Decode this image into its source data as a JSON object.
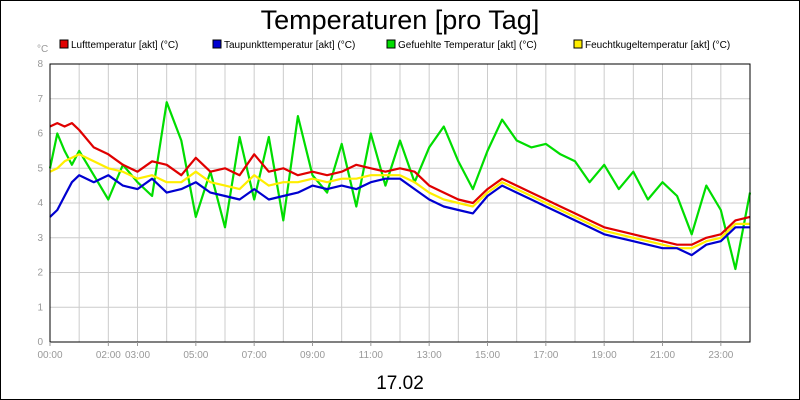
{
  "chart_data": {
    "type": "line",
    "title": "Temperaturen [pro Tag]",
    "subtitle": "17.02",
    "ylabel": "°C",
    "ylim": [
      0,
      8
    ],
    "y_ticks": [
      "0",
      "1",
      "2",
      "3",
      "4",
      "5",
      "6",
      "7",
      "8"
    ],
    "x_range_hours": [
      0,
      24
    ],
    "x_tick_labels": [
      {
        "label": "00:00",
        "hour": 0
      },
      {
        "label": "02:00",
        "hour": 2
      },
      {
        "label": "03:00",
        "hour": 3
      },
      {
        "label": "05:00",
        "hour": 5
      },
      {
        "label": "07:00",
        "hour": 7
      },
      {
        "label": "09:00",
        "hour": 9
      },
      {
        "label": "11:00",
        "hour": 11
      },
      {
        "label": "13:00",
        "hour": 13
      },
      {
        "label": "15:00",
        "hour": 15
      },
      {
        "label": "17:00",
        "hour": 17
      },
      {
        "label": "19:00",
        "hour": 19
      },
      {
        "label": "21:00",
        "hour": 21
      },
      {
        "label": "23:00",
        "hour": 23
      }
    ],
    "grid": true,
    "legend_position": "top",
    "series": [
      {
        "name": "Lufttemperatur [akt] (°C)",
        "color": "#e00000",
        "x": [
          0,
          0.25,
          0.5,
          0.75,
          1,
          1.5,
          2,
          2.5,
          3,
          3.5,
          4,
          4.5,
          5,
          5.5,
          6,
          6.5,
          7,
          7.5,
          8,
          8.5,
          9,
          9.5,
          10,
          10.5,
          11,
          11.5,
          12,
          12.5,
          13,
          13.5,
          14,
          14.5,
          15,
          15.5,
          16,
          16.5,
          17,
          17.5,
          18,
          18.5,
          19,
          19.5,
          20,
          20.5,
          21,
          21.5,
          22,
          22.5,
          23,
          23.5,
          24
        ],
        "y": [
          6.2,
          6.3,
          6.2,
          6.3,
          6.1,
          5.6,
          5.4,
          5.1,
          4.9,
          5.2,
          5.1,
          4.8,
          5.3,
          4.9,
          5.0,
          4.8,
          5.4,
          4.9,
          5.0,
          4.8,
          4.9,
          4.8,
          4.9,
          5.1,
          5.0,
          4.9,
          5.0,
          4.9,
          4.5,
          4.3,
          4.1,
          4.0,
          4.4,
          4.7,
          4.5,
          4.3,
          4.1,
          3.9,
          3.7,
          3.5,
          3.3,
          3.2,
          3.1,
          3.0,
          2.9,
          2.8,
          2.8,
          3.0,
          3.1,
          3.5,
          3.6
        ]
      },
      {
        "name": "Taupunkttemperatur [akt] (°C)",
        "color": "#0000d0",
        "x": [
          0,
          0.25,
          0.5,
          0.75,
          1,
          1.5,
          2,
          2.5,
          3,
          3.5,
          4,
          4.5,
          5,
          5.5,
          6,
          6.5,
          7,
          7.5,
          8,
          8.5,
          9,
          9.5,
          10,
          10.5,
          11,
          11.5,
          12,
          12.5,
          13,
          13.5,
          14,
          14.5,
          15,
          15.5,
          16,
          16.5,
          17,
          17.5,
          18,
          18.5,
          19,
          19.5,
          20,
          20.5,
          21,
          21.5,
          22,
          22.5,
          23,
          23.5,
          24
        ],
        "y": [
          3.6,
          3.8,
          4.2,
          4.6,
          4.8,
          4.6,
          4.8,
          4.5,
          4.4,
          4.7,
          4.3,
          4.4,
          4.6,
          4.3,
          4.2,
          4.1,
          4.4,
          4.1,
          4.2,
          4.3,
          4.5,
          4.4,
          4.5,
          4.4,
          4.6,
          4.7,
          4.7,
          4.4,
          4.1,
          3.9,
          3.8,
          3.7,
          4.2,
          4.5,
          4.3,
          4.1,
          3.9,
          3.7,
          3.5,
          3.3,
          3.1,
          3.0,
          2.9,
          2.8,
          2.7,
          2.7,
          2.5,
          2.8,
          2.9,
          3.3,
          3.3
        ]
      },
      {
        "name": "Gefuehlte Temperatur [akt] (°C)",
        "color": "#00dd00",
        "x": [
          0,
          0.25,
          0.5,
          0.75,
          1,
          1.5,
          2,
          2.5,
          3,
          3.5,
          4,
          4.5,
          5,
          5.5,
          6,
          6.5,
          7,
          7.5,
          8,
          8.5,
          9,
          9.5,
          10,
          10.5,
          11,
          11.5,
          12,
          12.5,
          13,
          13.5,
          14,
          14.5,
          15,
          15.5,
          16,
          16.5,
          17,
          17.5,
          18,
          18.5,
          19,
          19.5,
          20,
          20.5,
          21,
          21.5,
          22,
          22.5,
          23,
          23.5,
          24
        ],
        "y": [
          5.0,
          6.0,
          5.5,
          5.1,
          5.5,
          4.8,
          4.1,
          5.1,
          4.6,
          4.2,
          6.9,
          5.8,
          3.6,
          4.9,
          3.3,
          5.9,
          4.1,
          5.9,
          3.5,
          6.5,
          4.8,
          4.3,
          5.7,
          3.9,
          6.0,
          4.5,
          5.8,
          4.6,
          5.6,
          6.2,
          5.2,
          4.4,
          5.5,
          6.4,
          5.8,
          5.6,
          5.7,
          5.4,
          5.2,
          4.6,
          5.1,
          4.4,
          4.9,
          4.1,
          4.6,
          4.2,
          3.1,
          4.5,
          3.8,
          2.1,
          4.3
        ]
      },
      {
        "name": "Feuchtkugeltemperatur [akt] (°C)",
        "color": "#ffee00",
        "x": [
          0,
          0.25,
          0.5,
          0.75,
          1,
          1.5,
          2,
          2.5,
          3,
          3.5,
          4,
          4.5,
          5,
          5.5,
          6,
          6.5,
          7,
          7.5,
          8,
          8.5,
          9,
          9.5,
          10,
          10.5,
          11,
          11.5,
          12,
          12.5,
          13,
          13.5,
          14,
          14.5,
          15,
          15.5,
          16,
          16.5,
          17,
          17.5,
          18,
          18.5,
          19,
          19.5,
          20,
          20.5,
          21,
          21.5,
          22,
          22.5,
          23,
          23.5,
          24
        ],
        "y": [
          4.9,
          5.0,
          5.2,
          5.3,
          5.4,
          5.2,
          5.0,
          4.9,
          4.7,
          4.8,
          4.6,
          4.6,
          4.9,
          4.6,
          4.5,
          4.4,
          4.8,
          4.5,
          4.6,
          4.6,
          4.7,
          4.6,
          4.7,
          4.7,
          4.8,
          4.8,
          4.8,
          4.6,
          4.3,
          4.1,
          4.0,
          3.9,
          4.3,
          4.6,
          4.4,
          4.2,
          4.0,
          3.8,
          3.6,
          3.4,
          3.2,
          3.1,
          3.0,
          2.9,
          2.8,
          2.7,
          2.7,
          2.9,
          3.0,
          3.4,
          3.4
        ]
      }
    ]
  }
}
